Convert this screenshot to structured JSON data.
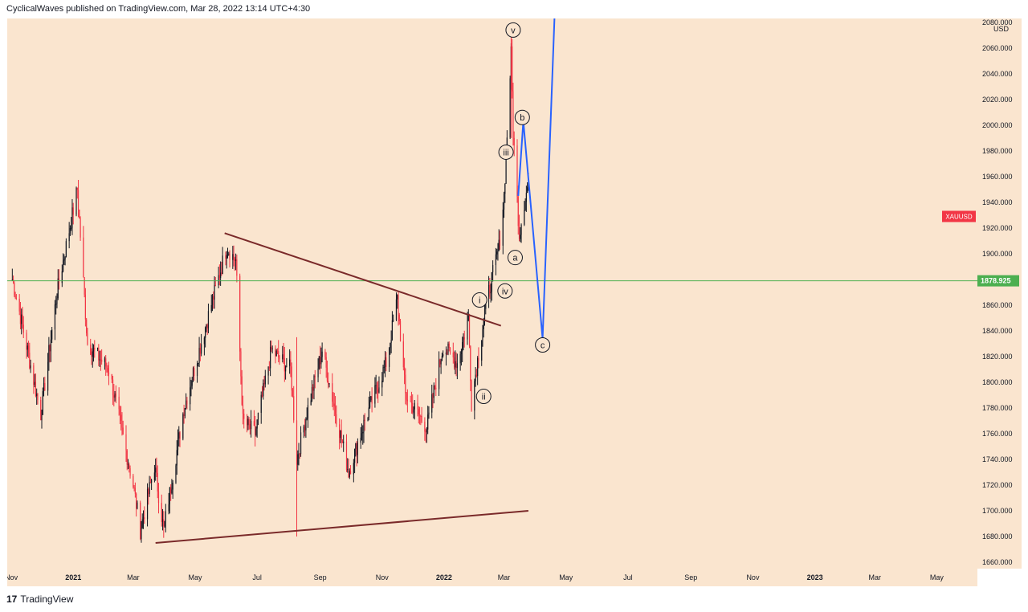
{
  "header": {
    "published": "CyclicalWaves published on TradingView.com, Mar 28, 2022 13:14 UTC+4:30"
  },
  "footer": {
    "brand": "TradingView",
    "logo_glyph": "17"
  },
  "colors": {
    "background": "#fae5cf",
    "up": "#131722",
    "down": "#f23645",
    "trendline": "#7a2a2a",
    "projection": "#2962ff",
    "hline": "#4caf50",
    "symbol_tag": "#f23645"
  },
  "chart_data": {
    "type": "candlestick",
    "symbol": "XAUUSD",
    "currency": "USD",
    "y_ticks": [
      "1660.000",
      "1680.000",
      "1700.000",
      "1720.000",
      "1740.000",
      "1760.000",
      "1780.000",
      "1800.000",
      "1820.000",
      "1840.000",
      "1860.000",
      "1880.000",
      "1900.000",
      "1920.000",
      "1940.000",
      "1960.000",
      "1980.000",
      "2000.000",
      "2020.000",
      "2040.000",
      "2060.000",
      "2080.000"
    ],
    "x_ticks": [
      "Nov",
      "2021",
      "Mar",
      "May",
      "Jul",
      "Sep",
      "Nov",
      "2022",
      "Mar",
      "May",
      "Jul",
      "Sep",
      "Nov",
      "2023",
      "Mar",
      "May"
    ],
    "ylim": [
      1655,
      2083
    ],
    "price_line": {
      "label": "1878.925",
      "value": 1878.925
    },
    "anchors_close": [
      [
        "2020-11-02",
        1880
      ],
      [
        "2020-11-09",
        1855
      ],
      [
        "2020-11-30",
        1775
      ],
      [
        "2020-12-16",
        1870
      ],
      [
        "2021-01-05",
        1950
      ],
      [
        "2021-01-15",
        1830
      ],
      [
        "2021-02-05",
        1810
      ],
      [
        "2021-03-01",
        1720
      ],
      [
        "2021-03-08",
        1685
      ],
      [
        "2021-03-22",
        1735
      ],
      [
        "2021-03-31",
        1685
      ],
      [
        "2021-04-20",
        1780
      ],
      [
        "2021-05-10",
        1840
      ],
      [
        "2021-06-01",
        1905
      ],
      [
        "2021-06-10",
        1895
      ],
      [
        "2021-06-17",
        1770
      ],
      [
        "2021-06-29",
        1760
      ],
      [
        "2021-07-15",
        1825
      ],
      [
        "2021-08-03",
        1810
      ],
      [
        "2021-08-09",
        1740
      ],
      [
        "2021-08-20",
        1780
      ],
      [
        "2021-09-03",
        1825
      ],
      [
        "2021-09-29",
        1730
      ],
      [
        "2021-10-15",
        1770
      ],
      [
        "2021-11-05",
        1815
      ],
      [
        "2021-11-16",
        1865
      ],
      [
        "2021-11-24",
        1790
      ],
      [
        "2021-12-15",
        1765
      ],
      [
        "2021-12-31",
        1828
      ],
      [
        "2022-01-14",
        1815
      ],
      [
        "2022-01-25",
        1850
      ],
      [
        "2022-01-28",
        1785
      ],
      [
        "2022-02-11",
        1860
      ],
      [
        "2022-02-24",
        1905
      ],
      [
        "2022-03-01",
        1945
      ],
      [
        "2022-03-08",
        2055
      ],
      [
        "2022-03-10",
        1995
      ],
      [
        "2022-03-16",
        1915
      ],
      [
        "2022-03-21",
        1940
      ],
      [
        "2022-03-25",
        1955
      ]
    ],
    "trendlines": [
      {
        "name": "triangle-upper",
        "points": [
          [
            "2021-05-30",
            1916
          ],
          [
            "2022-02-26",
            1844
          ]
        ]
      },
      {
        "name": "triangle-lower",
        "points": [
          [
            "2021-03-23",
            1675
          ],
          [
            "2022-03-25",
            1700
          ]
        ]
      }
    ],
    "projection": {
      "points": [
        [
          "2022-03-15",
          1945
        ],
        [
          "2022-03-20",
          2003
        ],
        [
          "2022-04-08",
          1834
        ],
        [
          "2022-04-20",
          2090
        ]
      ]
    },
    "wave_labels": [
      {
        "text": "v",
        "date": "2022-03-10",
        "y": 2074
      },
      {
        "text": "iii",
        "date": "2022-03-03",
        "y": 1979
      },
      {
        "text": "b",
        "date": "2022-03-19",
        "y": 2006
      },
      {
        "text": "a",
        "date": "2022-03-12",
        "y": 1897
      },
      {
        "text": "iv",
        "date": "2022-03-02",
        "y": 1871
      },
      {
        "text": "i",
        "date": "2022-02-05",
        "y": 1864
      },
      {
        "text": "ii",
        "date": "2022-02-09",
        "y": 1789
      },
      {
        "text": "c",
        "date": "2022-04-08",
        "y": 1829
      }
    ]
  }
}
